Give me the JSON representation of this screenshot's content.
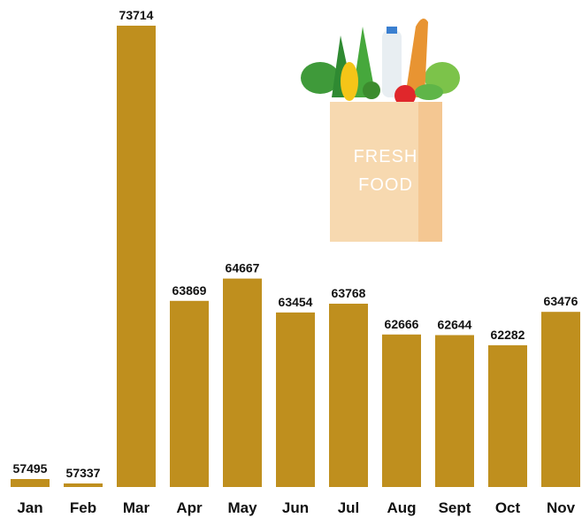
{
  "chart_data": {
    "type": "bar",
    "categories": [
      "Jan",
      "Feb",
      "Mar",
      "Apr",
      "May",
      "Jun",
      "Jul",
      "Aug",
      "Sept",
      "Oct",
      "Nov"
    ],
    "values": [
      57495,
      57337,
      73714,
      63869,
      64667,
      63454,
      63768,
      62666,
      62644,
      62282,
      63476
    ],
    "color": "#bf8f1e",
    "ylim": [
      57210,
      73714
    ],
    "annotations": [
      "FRESH",
      "FOOD"
    ]
  }
}
